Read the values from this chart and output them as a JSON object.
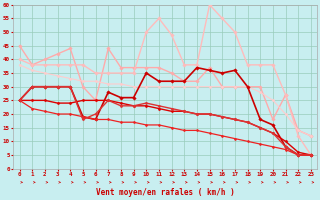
{
  "background_color": "#c8eef0",
  "grid_color": "#99ccbb",
  "xlabel": "Vent moyen/en rafales ( km/h )",
  "xlabel_color": "#cc0000",
  "xlabel_fontsize": 5.5,
  "tick_color": "#cc0000",
  "tick_fontsize": 4.2,
  "xlim": [
    -0.5,
    23.5
  ],
  "ylim": [
    0,
    60
  ],
  "ytick_values": [
    0,
    5,
    10,
    15,
    20,
    25,
    30,
    35,
    40,
    45,
    50,
    55,
    60
  ],
  "series": [
    {
      "x": [
        0,
        1,
        2,
        3,
        4,
        5,
        6,
        7,
        8,
        9,
        10,
        11,
        12,
        13,
        14,
        15,
        16,
        17,
        18,
        19,
        20,
        21,
        22,
        23
      ],
      "y": [
        45,
        38,
        40,
        42,
        44,
        30,
        25,
        44,
        37,
        37,
        37,
        37,
        35,
        32,
        32,
        37,
        30,
        30,
        30,
        30,
        18,
        27,
        14,
        12
      ],
      "color": "#ffaaaa",
      "lw": 1.0,
      "marker": "D",
      "ms": 1.8
    },
    {
      "x": [
        0,
        1,
        2,
        3,
        4,
        5,
        6,
        7,
        8,
        9,
        10,
        11,
        12,
        13,
        14,
        15,
        16,
        17,
        18,
        19,
        20,
        21,
        22,
        23
      ],
      "y": [
        40,
        38,
        38,
        38,
        38,
        38,
        35,
        35,
        35,
        35,
        50,
        55,
        49,
        38,
        38,
        60,
        55,
        50,
        38,
        38,
        38,
        27,
        12,
        5
      ],
      "color": "#ffbbbb",
      "lw": 1.0,
      "marker": "D",
      "ms": 1.8
    },
    {
      "x": [
        0,
        1,
        2,
        3,
        4,
        5,
        6,
        7,
        8,
        9,
        10,
        11,
        12,
        13,
        14,
        15,
        16,
        17,
        18,
        19,
        20,
        21,
        22,
        23
      ],
      "y": [
        38,
        36,
        35,
        34,
        33,
        32,
        32,
        31,
        31,
        30,
        30,
        30,
        30,
        30,
        30,
        30,
        30,
        30,
        30,
        28,
        25,
        20,
        14,
        12
      ],
      "color": "#ffcccc",
      "lw": 0.8,
      "marker": "D",
      "ms": 1.5
    },
    {
      "x": [
        0,
        1,
        2,
        3,
        4,
        5,
        6,
        7,
        8,
        9,
        10,
        11,
        12,
        13,
        14,
        15,
        16,
        17,
        18,
        19,
        20,
        21,
        22,
        23
      ],
      "y": [
        25,
        30,
        30,
        30,
        30,
        19,
        18,
        28,
        26,
        26,
        35,
        32,
        32,
        32,
        37,
        36,
        35,
        36,
        30,
        18,
        16,
        8,
        5,
        5
      ],
      "color": "#cc0000",
      "lw": 1.2,
      "marker": "D",
      "ms": 1.8
    },
    {
      "x": [
        0,
        1,
        2,
        3,
        4,
        5,
        6,
        7,
        8,
        9,
        10,
        11,
        12,
        13,
        14,
        15,
        16,
        17,
        18,
        19,
        20,
        21,
        22,
        23
      ],
      "y": [
        25,
        25,
        25,
        24,
        24,
        25,
        25,
        25,
        24,
        23,
        23,
        22,
        21,
        21,
        20,
        20,
        19,
        18,
        17,
        15,
        13,
        10,
        6,
        5
      ],
      "color": "#dd0000",
      "lw": 1.0,
      "marker": "D",
      "ms": 1.5
    },
    {
      "x": [
        0,
        1,
        2,
        3,
        4,
        5,
        6,
        7,
        8,
        9,
        10,
        11,
        12,
        13,
        14,
        15,
        16,
        17,
        18,
        19,
        20,
        21,
        22,
        23
      ],
      "y": [
        25,
        22,
        21,
        20,
        20,
        19,
        18,
        18,
        17,
        17,
        16,
        16,
        15,
        14,
        14,
        13,
        12,
        11,
        10,
        9,
        8,
        7,
        5,
        5
      ],
      "color": "#ee2222",
      "lw": 0.9,
      "marker": "D",
      "ms": 1.4
    },
    {
      "x": [
        0,
        1,
        2,
        3,
        4,
        5,
        6,
        7,
        8,
        9,
        10,
        11,
        12,
        13,
        14,
        15,
        16,
        17,
        18,
        19,
        20,
        21,
        22,
        23
      ],
      "y": [
        25,
        30,
        30,
        30,
        30,
        18,
        20,
        25,
        23,
        23,
        24,
        23,
        22,
        21,
        20,
        20,
        19,
        18,
        17,
        15,
        13,
        8,
        5,
        5
      ],
      "color": "#dd3333",
      "lw": 1.0,
      "marker": "D",
      "ms": 1.5
    }
  ]
}
